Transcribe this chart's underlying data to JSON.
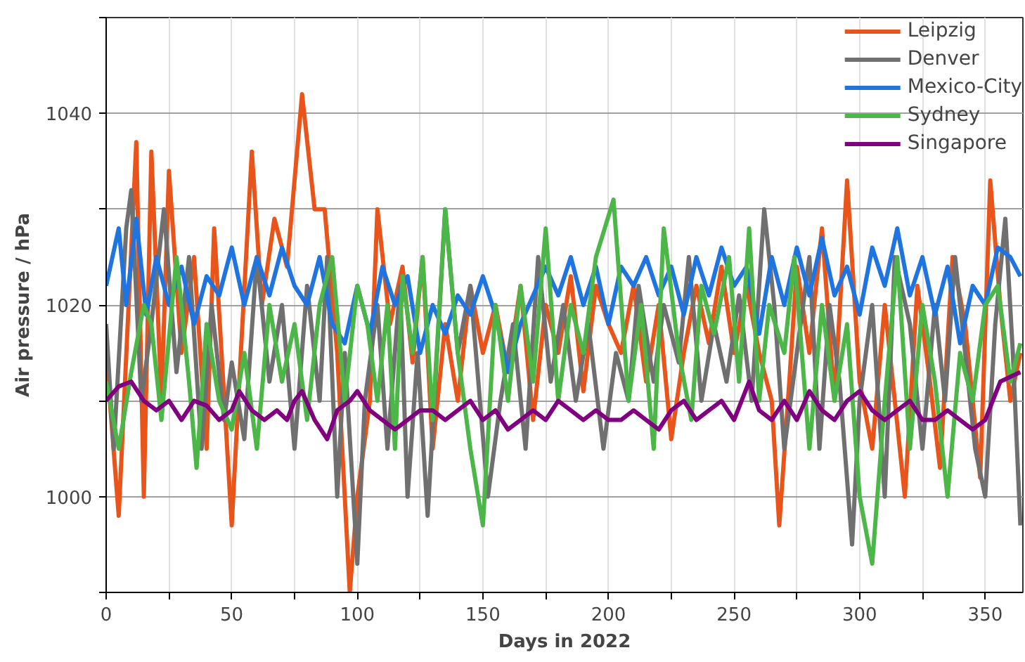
{
  "chart_data": {
    "type": "line",
    "xlabel": "Days in 2022",
    "ylabel": "Air pressure / hPa",
    "xlim": [
      0,
      365
    ],
    "ylim": [
      990,
      1050
    ],
    "xticks": [
      0,
      {
        "value": 25,
        "label": null
      },
      50,
      {
        "value": 75,
        "label": null
      },
      100,
      {
        "value": 125,
        "label": null
      },
      150,
      {
        "value": 175,
        "label": null
      },
      200,
      {
        "value": 225,
        "label": null
      },
      250,
      {
        "value": 275,
        "label": null
      },
      300,
      {
        "value": 325,
        "label": null
      },
      350
    ],
    "yticks": [
      {
        "value": 990,
        "label": null
      },
      1000,
      {
        "value": 1010,
        "label": null
      },
      1020,
      {
        "value": 1030,
        "label": null
      },
      1040,
      {
        "value": 1050,
        "label": null
      }
    ],
    "grid": true,
    "legend": "top right",
    "marker": "none",
    "line_style": "solid",
    "series": [
      {
        "name": "Leipzig",
        "color": "#e8541a",
        "x": [
          0,
          5,
          12,
          15,
          18,
          22,
          25,
          30,
          35,
          40,
          43,
          50,
          53,
          58,
          62,
          67,
          72,
          78,
          83,
          87,
          92,
          97,
          100,
          105,
          108,
          113,
          118,
          122,
          126,
          130,
          135,
          140,
          145,
          150,
          155,
          160,
          165,
          170,
          175,
          180,
          185,
          190,
          195,
          200,
          205,
          210,
          215,
          220,
          225,
          230,
          235,
          240,
          245,
          250,
          255,
          260,
          265,
          268,
          272,
          275,
          280,
          285,
          290,
          295,
          300,
          305,
          310,
          318,
          323,
          328,
          332,
          337,
          342,
          348,
          352,
          356,
          360,
          364
        ],
        "values": [
          1015,
          998,
          1037,
          1000,
          1036,
          1010,
          1034,
          1015,
          1025,
          1005,
          1028,
          997,
          1012,
          1036,
          1020,
          1029,
          1024,
          1042,
          1030,
          1030,
          1015,
          990,
          1000,
          1010,
          1030,
          1018,
          1024,
          1014,
          1025,
          1005,
          1018,
          1010,
          1022,
          1015,
          1020,
          1013,
          1022,
          1008,
          1020,
          1015,
          1023,
          1011,
          1022,
          1018,
          1015,
          1022,
          1012,
          1020,
          1006,
          1015,
          1022,
          1016,
          1024,
          1015,
          1022,
          1015,
          1010,
          997,
          1012,
          1024,
          1015,
          1028,
          1010,
          1033,
          1012,
          1005,
          1020,
          1000,
          1022,
          1012,
          1003,
          1025,
          1018,
          1002,
          1033,
          1020,
          1010,
          1015
        ]
      },
      {
        "name": "Denver",
        "color": "#707070",
        "x": [
          0,
          3,
          8,
          10,
          14,
          18,
          23,
          28,
          33,
          38,
          42,
          47,
          50,
          55,
          60,
          65,
          70,
          75,
          80,
          85,
          88,
          92,
          95,
          100,
          103,
          108,
          112,
          117,
          120,
          124,
          128,
          135,
          140,
          145,
          152,
          157,
          162,
          167,
          172,
          177,
          182,
          187,
          192,
          198,
          203,
          208,
          212,
          218,
          222,
          228,
          232,
          237,
          242,
          247,
          252,
          257,
          262,
          266,
          270,
          275,
          280,
          284,
          288,
          292,
          297,
          300,
          305,
          310,
          314,
          320,
          325,
          330,
          334,
          338,
          342,
          346,
          350,
          354,
          358,
          361,
          364
        ],
        "values": [
          1018,
          1005,
          1028,
          1032,
          1010,
          1018,
          1030,
          1013,
          1025,
          1005,
          1020,
          1008,
          1014,
          1006,
          1025,
          1012,
          1020,
          1005,
          1022,
          1010,
          1025,
          1000,
          1015,
          993,
          1010,
          1020,
          1005,
          1022,
          1000,
          1015,
          998,
          1030,
          1015,
          1022,
          1000,
          1010,
          1018,
          1005,
          1025,
          1012,
          1020,
          1010,
          1018,
          1005,
          1015,
          1010,
          1022,
          1012,
          1020,
          1014,
          1025,
          1010,
          1018,
          1012,
          1021,
          1010,
          1030,
          1020,
          1005,
          1015,
          1025,
          1005,
          1020,
          1012,
          995,
          1010,
          1020,
          1000,
          1025,
          1018,
          1005,
          1020,
          1010,
          1025,
          1015,
          1005,
          1000,
          1018,
          1029,
          1015,
          997
        ]
      },
      {
        "name": "Mexico-City",
        "color": "#1f74e0",
        "x": [
          0,
          5,
          8,
          12,
          16,
          20,
          25,
          30,
          35,
          40,
          45,
          50,
          55,
          60,
          65,
          70,
          75,
          80,
          85,
          90,
          95,
          100,
          105,
          110,
          115,
          120,
          125,
          130,
          135,
          140,
          145,
          150,
          155,
          160,
          165,
          170,
          175,
          180,
          185,
          190,
          195,
          200,
          205,
          210,
          215,
          220,
          225,
          230,
          235,
          240,
          245,
          250,
          255,
          260,
          265,
          270,
          275,
          280,
          285,
          290,
          295,
          300,
          305,
          310,
          315,
          320,
          325,
          330,
          335,
          340,
          345,
          350,
          355,
          360,
          364
        ],
        "values": [
          1022,
          1028,
          1020,
          1029,
          1019,
          1025,
          1020,
          1024,
          1018,
          1023,
          1021,
          1026,
          1020,
          1025,
          1021,
          1026,
          1022,
          1020,
          1025,
          1018,
          1016,
          1022,
          1017,
          1024,
          1020,
          1023,
          1015,
          1020,
          1017,
          1021,
          1019,
          1023,
          1019,
          1013,
          1018,
          1021,
          1024,
          1021,
          1025,
          1020,
          1024,
          1018,
          1024,
          1022,
          1025,
          1021,
          1024,
          1019,
          1025,
          1021,
          1026,
          1022,
          1024,
          1017,
          1025,
          1020,
          1026,
          1021,
          1027,
          1021,
          1024,
          1019,
          1026,
          1022,
          1028,
          1021,
          1025,
          1019,
          1024,
          1016,
          1022,
          1020,
          1026,
          1025,
          1023
        ]
      },
      {
        "name": "Sydney",
        "color": "#4cb648",
        "x": [
          0,
          5,
          10,
          15,
          18,
          22,
          28,
          33,
          36,
          40,
          45,
          50,
          55,
          60,
          65,
          70,
          75,
          80,
          85,
          90,
          95,
          100,
          104,
          108,
          112,
          115,
          118,
          122,
          126,
          130,
          135,
          140,
          145,
          150,
          155,
          160,
          165,
          170,
          175,
          180,
          185,
          190,
          195,
          202,
          208,
          213,
          218,
          222,
          228,
          233,
          237,
          242,
          248,
          252,
          256,
          260,
          264,
          270,
          274,
          280,
          285,
          290,
          295,
          300,
          305,
          310,
          315,
          320,
          325,
          330,
          335,
          340,
          345,
          350,
          355,
          360,
          364
        ],
        "values": [
          1012,
          1005,
          1013,
          1020,
          1018,
          1008,
          1025,
          1012,
          1003,
          1018,
          1010,
          1007,
          1015,
          1005,
          1020,
          1012,
          1018,
          1008,
          1020,
          1025,
          1010,
          1022,
          1018,
          1010,
          1020,
          1005,
          1023,
          1015,
          1025,
          1008,
          1030,
          1015,
          1005,
          997,
          1020,
          1010,
          1022,
          1012,
          1028,
          1010,
          1020,
          1015,
          1025,
          1031,
          1010,
          1020,
          1005,
          1028,
          1015,
          1008,
          1022,
          1017,
          1025,
          1012,
          1028,
          1010,
          1020,
          1015,
          1025,
          1005,
          1020,
          1010,
          1018,
          1000,
          993,
          1010,
          1025,
          1005,
          1020,
          1012,
          1000,
          1015,
          1010,
          1020,
          1022,
          1012,
          1016
        ]
      },
      {
        "name": "Singapore",
        "color": "#800080",
        "x": [
          0,
          5,
          10,
          15,
          20,
          25,
          30,
          35,
          40,
          45,
          50,
          53,
          58,
          63,
          68,
          72,
          75,
          78,
          83,
          88,
          92,
          97,
          100,
          105,
          110,
          115,
          120,
          125,
          130,
          135,
          140,
          145,
          150,
          155,
          160,
          165,
          170,
          175,
          180,
          185,
          190,
          195,
          200,
          205,
          210,
          215,
          220,
          225,
          230,
          235,
          240,
          245,
          250,
          256,
          260,
          265,
          270,
          275,
          280,
          285,
          290,
          295,
          300,
          305,
          310,
          315,
          320,
          325,
          330,
          335,
          340,
          345,
          350,
          356,
          364
        ],
        "values": [
          1010,
          1011.5,
          1012,
          1010,
          1009,
          1010,
          1008,
          1010,
          1009.5,
          1008,
          1009,
          1011,
          1009,
          1008,
          1009,
          1008,
          1010,
          1011,
          1008,
          1006,
          1009,
          1010,
          1011,
          1009,
          1008,
          1007,
          1008,
          1009,
          1009,
          1008,
          1009,
          1010,
          1008,
          1009,
          1007,
          1008,
          1009,
          1008,
          1010,
          1009,
          1008,
          1009,
          1008,
          1008,
          1009,
          1008,
          1007,
          1009,
          1010,
          1008,
          1009,
          1010,
          1008,
          1012,
          1009,
          1008,
          1010,
          1008,
          1011,
          1009,
          1008,
          1010,
          1011,
          1009,
          1008,
          1009,
          1010,
          1008,
          1008,
          1009,
          1008,
          1007,
          1008,
          1012,
          1013
        ]
      }
    ]
  }
}
